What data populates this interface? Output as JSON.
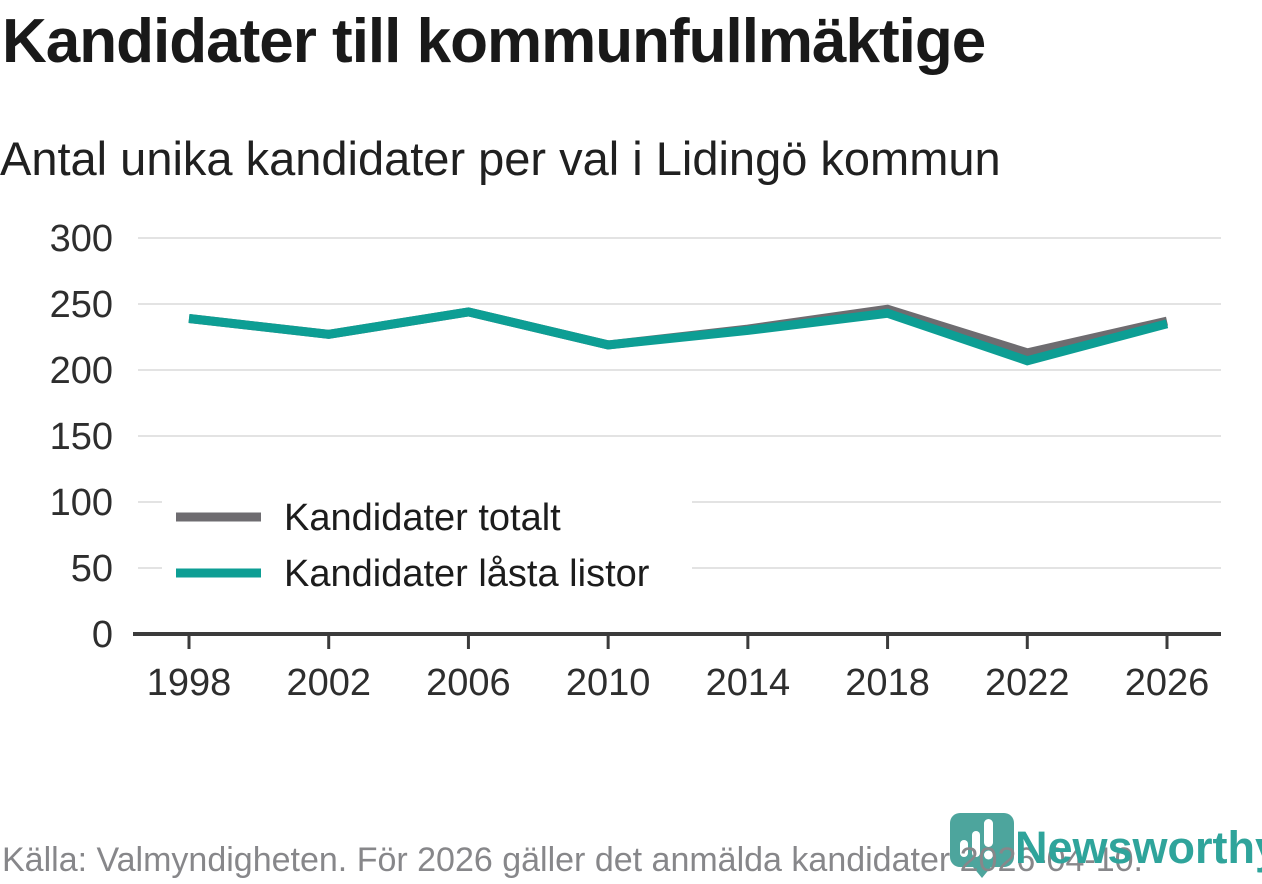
{
  "title": "Kandidater till kommunfullmäktige",
  "subtitle": "Antal unika kandidater per val i Lidingö kommun",
  "footer": {
    "source_text": "Källa: Valmyndigheten. För 2026 gäller det anmälda kandidater 2026-04-10."
  },
  "branding": {
    "wordmark": "Newsworthy",
    "logo_icon": "newsworthy-pin-barchart-icon",
    "pin_color": "#4da59d",
    "wordmark_color": "#2fa49b"
  },
  "colors": {
    "series_total": "#6e6c70",
    "series_locked": "#0d9e94",
    "gridline": "#e3e3e3",
    "axis": "#3b3b3b",
    "tick_label": "#2e2e2e",
    "legend_text": "#1c1c1c",
    "legend_background": "#ffffff"
  },
  "chart_data": {
    "type": "line",
    "title": "Kandidater till kommunfullmäktige",
    "subtitle": "Antal unika kandidater per val i Lidingö kommun",
    "x": [
      1998,
      2002,
      2006,
      2010,
      2014,
      2018,
      2022,
      2026
    ],
    "x_tick_labels": [
      "1998",
      "2002",
      "2006",
      "2010",
      "2014",
      "2018",
      "2022",
      "2026"
    ],
    "y_ticks": [
      300,
      250,
      200,
      150,
      100,
      50,
      0
    ],
    "ylim": [
      0,
      300
    ],
    "grid": "horizontal",
    "legend_position": "inside-left-middle",
    "series": [
      {
        "name": "Kandidater totalt",
        "color": "#6e6c70",
        "values": [
          239,
          227,
          244,
          219,
          231,
          246,
          213,
          237
        ]
      },
      {
        "name": "Kandidater låsta listor",
        "color": "#0d9e94",
        "values": [
          239,
          227,
          244,
          219,
          230,
          243,
          207,
          235
        ]
      }
    ]
  }
}
